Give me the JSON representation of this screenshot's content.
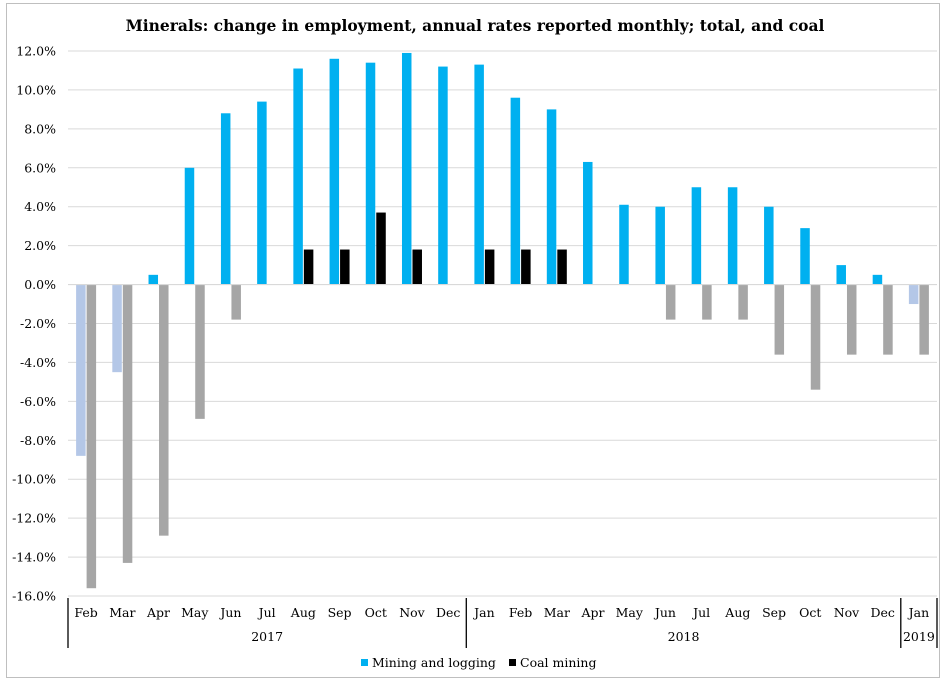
{
  "chart_data": {
    "type": "bar",
    "title": "Minerals: change in employment, annual rates reported monthly; total, and coal",
    "xlabel": "",
    "ylabel": "",
    "ylim": [
      -16,
      12
    ],
    "ytick_step": 2,
    "ytick_format": "percent_one_decimal",
    "grid": true,
    "legend_position": "bottom",
    "categories": [
      "Feb",
      "Mar",
      "Apr",
      "May",
      "Jun",
      "Jul",
      "Aug",
      "Sep",
      "Oct",
      "Nov",
      "Dec",
      "Jan",
      "Feb",
      "Mar",
      "Apr",
      "May",
      "Jun",
      "Jul",
      "Aug",
      "Sep",
      "Oct",
      "Nov",
      "Dec",
      "Jan"
    ],
    "groups": [
      {
        "label": "2017",
        "start": 0,
        "end": 10
      },
      {
        "label": "2018",
        "start": 11,
        "end": 22
      },
      {
        "label": "2019",
        "start": 23,
        "end": 23
      }
    ],
    "series": [
      {
        "name": "Mining and logging",
        "color": "#00b0f0",
        "negative_color": "#b4c7e7",
        "values": [
          -8.8,
          -4.5,
          0.5,
          6.0,
          8.8,
          9.4,
          11.1,
          11.6,
          11.4,
          11.9,
          11.2,
          11.3,
          9.6,
          9.0,
          6.3,
          4.1,
          4.0,
          5.0,
          5.0,
          4.0,
          2.9,
          1.0,
          0.5,
          -1.0
        ]
      },
      {
        "name": "Coal mining",
        "color": "#000000",
        "negative_color": "#a6a6a6",
        "values": [
          -15.6,
          -14.3,
          -12.9,
          -6.9,
          -1.8,
          0.0,
          1.8,
          1.8,
          3.7,
          1.8,
          0.0,
          1.8,
          1.8,
          1.8,
          0.0,
          0.0,
          -1.8,
          -1.8,
          -1.8,
          -3.6,
          -5.4,
          -3.6,
          -3.6,
          -3.6
        ]
      }
    ],
    "colors": {
      "gridline": "#d9d9d9",
      "axis": "#000000",
      "frame": "#bfbfbf"
    }
  }
}
